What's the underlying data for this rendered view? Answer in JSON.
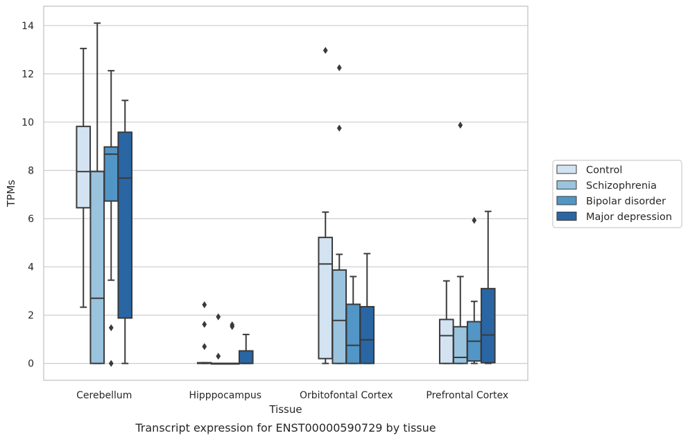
{
  "chart_data": {
    "type": "box",
    "categories": [
      "Cerebellum",
      "Hipppocampus",
      "Orbitofontal Cortex",
      "Prefrontal Cortex"
    ],
    "xlabel": "Tissue",
    "ylabel": "TPMs",
    "caption": "Transcript expression for ENST00000590729 by tissue",
    "ylim": [
      -0.7,
      14.8
    ],
    "yticks": [
      0,
      2,
      4,
      6,
      8,
      10,
      12,
      14
    ],
    "grid": true,
    "legend": {
      "placement": "right"
    },
    "series": [
      {
        "name": "Control",
        "color": "#d3e3f2",
        "boxes": [
          {
            "whislo": 2.33,
            "q1": 6.45,
            "med": 7.95,
            "q3": 9.82,
            "whishi": 13.05,
            "fliers": []
          },
          {
            "whislo": 0.0,
            "q1": 0.0,
            "med": 0.01,
            "q3": 0.03,
            "whishi": 0.03,
            "fliers": [
              0.7,
              1.62,
              2.43
            ]
          },
          {
            "whislo": 0.0,
            "q1": 0.2,
            "med": 4.12,
            "q3": 5.22,
            "whishi": 6.27,
            "fliers": [
              12.97
            ]
          },
          {
            "whislo": 0.0,
            "q1": 0.0,
            "med": 1.15,
            "q3": 1.82,
            "whishi": 3.42,
            "fliers": []
          }
        ]
      },
      {
        "name": "Schizophrenia",
        "color": "#9ac3de",
        "boxes": [
          {
            "whislo": 0.0,
            "q1": 0.0,
            "med": 2.7,
            "q3": 7.95,
            "whishi": 14.1,
            "fliers": []
          },
          {
            "whislo": 0.0,
            "q1": 0.0,
            "med": 0.0,
            "q3": 0.0,
            "whishi": 0.0,
            "fliers": [
              0.3,
              1.93
            ]
          },
          {
            "whislo": 0.0,
            "q1": 0.0,
            "med": 1.78,
            "q3": 3.87,
            "whishi": 4.52,
            "fliers": [
              9.75,
              12.25
            ]
          },
          {
            "whislo": 0.0,
            "q1": 0.0,
            "med": 0.25,
            "q3": 1.52,
            "whishi": 3.6,
            "fliers": [
              9.87
            ]
          }
        ]
      },
      {
        "name": "Bipolar disorder",
        "color": "#5196c7",
        "boxes": [
          {
            "whislo": 3.45,
            "q1": 6.73,
            "med": 8.67,
            "q3": 8.97,
            "whishi": 12.13,
            "fliers": [
              0.0,
              1.48
            ]
          },
          {
            "whislo": 0.0,
            "q1": 0.0,
            "med": 0.0,
            "q3": 0.0,
            "whishi": 0.0,
            "fliers": [
              1.53,
              1.6
            ]
          },
          {
            "whislo": 0.0,
            "q1": 0.0,
            "med": 0.75,
            "q3": 2.45,
            "whishi": 3.6,
            "fliers": []
          },
          {
            "whislo": 0.0,
            "q1": 0.1,
            "med": 0.92,
            "q3": 1.73,
            "whishi": 2.57,
            "fliers": [
              5.93
            ]
          }
        ]
      },
      {
        "name": "Major depression",
        "color": "#2a66a4",
        "boxes": [
          {
            "whislo": 0.0,
            "q1": 1.88,
            "med": 7.68,
            "q3": 9.58,
            "whishi": 10.9,
            "fliers": []
          },
          {
            "whislo": 0.0,
            "q1": 0.0,
            "med": 0.0,
            "q3": 0.52,
            "whishi": 1.2,
            "fliers": []
          },
          {
            "whislo": 0.0,
            "q1": 0.0,
            "med": 0.98,
            "q3": 2.35,
            "whishi": 4.55,
            "fliers": []
          },
          {
            "whislo": 0.0,
            "q1": 0.03,
            "med": 1.18,
            "q3": 3.1,
            "whishi": 6.3,
            "fliers": []
          }
        ]
      }
    ]
  }
}
